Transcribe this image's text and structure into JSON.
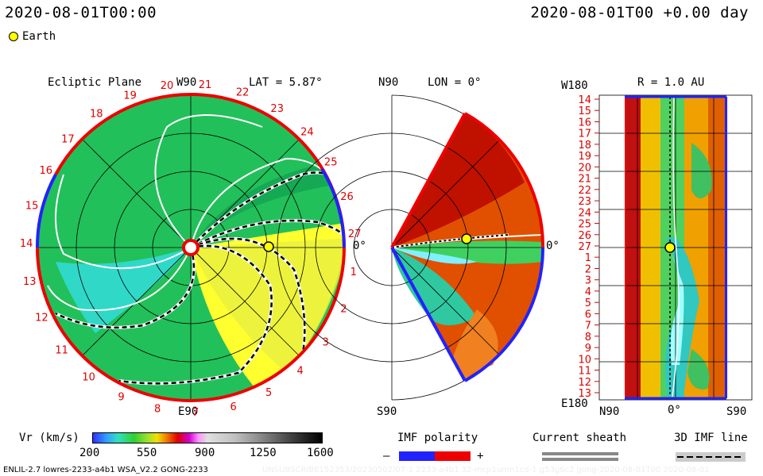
{
  "header": {
    "left_time": "2020-08-01T00:00",
    "right_time": "2020-08-01T00  +0.00 day",
    "earth_label": "Earth"
  },
  "ecliptic": {
    "title": "Ecliptic Plane",
    "top_label": "W90",
    "bottom_label": "E90",
    "right_label": "0°",
    "lat_label": "LAT = 5.87°",
    "day_ticks": [
      "20",
      "21",
      "22",
      "23",
      "24",
      "25",
      "26",
      "27",
      "1",
      "2",
      "3",
      "4",
      "5",
      "6",
      "7",
      "8",
      "9",
      "10",
      "11",
      "12",
      "13",
      "14",
      "15",
      "16",
      "17",
      "18",
      "19"
    ]
  },
  "meridional": {
    "top_label": "N90",
    "bottom_label": "S90",
    "lon_label": "LON = 0°",
    "right_label": "0°"
  },
  "radial": {
    "title": "R = 1.0 AU",
    "top_left": "W180",
    "bottom_left": "E180",
    "bottom_n": "N90",
    "bottom_mid": "0°",
    "bottom_s": "S90",
    "rows": [
      "14",
      "15",
      "16",
      "17",
      "18",
      "19",
      "20",
      "21",
      "22",
      "23",
      "24",
      "25",
      "26",
      "27",
      "1",
      "2",
      "3",
      "4",
      "5",
      "6",
      "7",
      "8",
      "9",
      "10",
      "11",
      "12",
      "13"
    ]
  },
  "colorbar": {
    "label": "Vr (km/s)",
    "ticks": [
      "200",
      "550",
      "900",
      "1250",
      "1600"
    ]
  },
  "imf": {
    "title": "IMF polarity",
    "minus": "–",
    "plus": "+"
  },
  "sheath": {
    "title": "Current sheath"
  },
  "imf3d": {
    "title": "3D IMF line"
  },
  "footer": {
    "model": "ENLIL-2.7 lowres-2233-a4b1 WSA_V2.2 GONG-2233",
    "run_id": "UNSUBSCRIBE152353/20230502/07-1 2233-a4b1 32-mcp1umn1cd-1 g53g6c2 gong-2020-08-01T00   2020-08-01"
  }
}
